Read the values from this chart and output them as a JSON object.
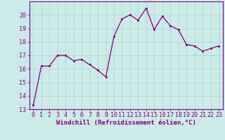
{
  "x": [
    0,
    1,
    2,
    3,
    4,
    5,
    6,
    7,
    8,
    9,
    10,
    11,
    12,
    13,
    14,
    15,
    16,
    17,
    18,
    19,
    20,
    21,
    22,
    23
  ],
  "y": [
    13.3,
    16.2,
    16.2,
    17.0,
    17.0,
    16.6,
    16.7,
    16.3,
    15.9,
    15.4,
    18.4,
    19.7,
    20.0,
    19.6,
    20.5,
    18.9,
    19.9,
    19.2,
    18.9,
    17.8,
    17.7,
    17.3,
    17.5,
    17.7
  ],
  "line_color": "#800080",
  "marker": "s",
  "marker_size": 1.8,
  "bg_color": "#cceae8",
  "grid_color": "#aad4d2",
  "xlabel": "Windchill (Refroidissement éolien,°C)",
  "xlabel_color": "#800080",
  "tick_color": "#800080",
  "spine_color": "#800080",
  "ylim": [
    13,
    21
  ],
  "xlim": [
    -0.5,
    23.5
  ],
  "yticks": [
    13,
    14,
    15,
    16,
    17,
    18,
    19,
    20
  ],
  "xticks": [
    0,
    1,
    2,
    3,
    4,
    5,
    6,
    7,
    8,
    9,
    10,
    11,
    12,
    13,
    14,
    15,
    16,
    17,
    18,
    19,
    20,
    21,
    22,
    23
  ],
  "font_size": 6.0,
  "label_font_size": 6.5
}
